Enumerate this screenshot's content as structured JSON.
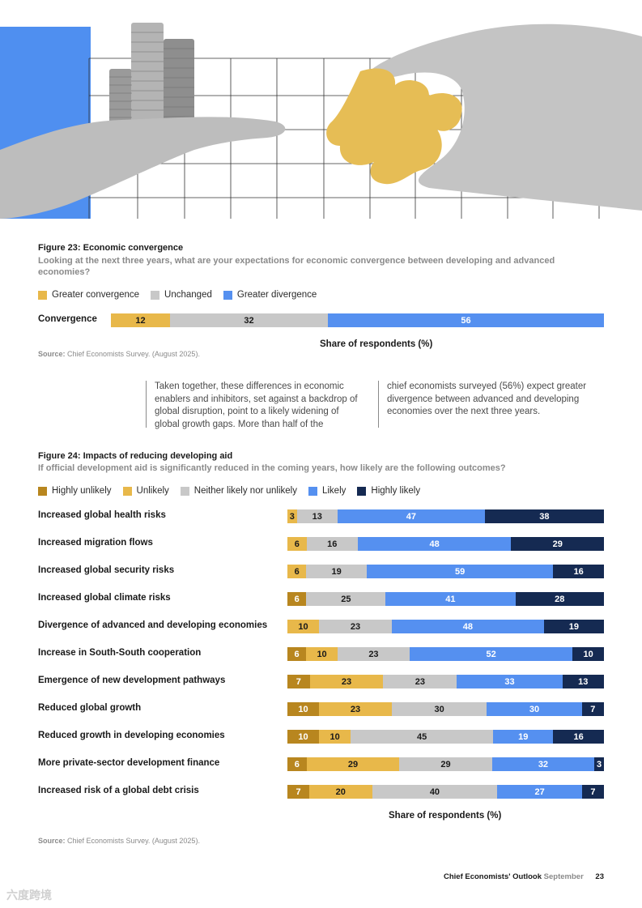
{
  "colors": {
    "highly_unlikely": "#b8861f",
    "unlikely": "#e8b84a",
    "neutral": "#c8c8c8",
    "likely": "#5590f0",
    "highly_likely": "#152a52"
  },
  "figure23": {
    "title": "Figure 23: Economic convergence",
    "subtitle": "Looking at the next three years, what are your expectations for economic convergence between developing and advanced economies?",
    "legend": [
      "Greater convergence",
      "Unchanged",
      "Greater divergence"
    ],
    "axis_title": "Share of respondents (%)",
    "source_label": "Source:",
    "source_text": "Chief Economists Survey. (August 2025)."
  },
  "quote": {
    "left": "Taken together, these differences in economic enablers and inhibitors, set against a backdrop of global disruption, point to a likely widening of global growth gaps. More than half of the",
    "right": "chief economists surveyed (56%) expect greater divergence between advanced and developing economies over the next three years."
  },
  "figure24": {
    "title": "Figure 24: Impacts of reducing developing aid",
    "subtitle": "If official development aid is significantly reduced in the coming years, how likely are the following outcomes?",
    "legend": [
      "Highly unlikely",
      "Unlikely",
      "Neither likely nor unlikely",
      "Likely",
      "Highly likely"
    ],
    "axis_title": "Share of respondents (%)",
    "source_label": "Source:",
    "source_text": "Chief Economists Survey. (August 2025)."
  },
  "chart_data": [
    {
      "type": "bar",
      "orientation": "horizontal",
      "stacked": true,
      "title": "Figure 23: Economic convergence",
      "xlabel": "Share of respondents (%)",
      "xlim": [
        0,
        100
      ],
      "categories": [
        "Convergence"
      ],
      "series": [
        {
          "name": "Greater convergence",
          "values": [
            12
          ]
        },
        {
          "name": "Unchanged",
          "values": [
            32
          ]
        },
        {
          "name": "Greater divergence",
          "values": [
            56
          ]
        }
      ]
    },
    {
      "type": "bar",
      "orientation": "horizontal",
      "stacked": true,
      "title": "Figure 24: Impacts of reducing developing aid",
      "xlabel": "Share of respondents (%)",
      "xlim": [
        0,
        100
      ],
      "categories": [
        "Increased global health risks",
        "Increased migration flows",
        "Increased global security risks",
        "Increased global climate risks",
        "Divergence of advanced and developing economies",
        "Increase in South-South cooperation",
        "Emergence of new development pathways",
        "Reduced global growth",
        "Reduced growth in developing economies",
        "More private-sector development finance",
        "Increased risk of a global debt crisis"
      ],
      "series": [
        {
          "name": "Highly unlikely",
          "values": [
            0,
            0,
            0,
            6,
            0,
            6,
            7,
            10,
            10,
            6,
            7
          ]
        },
        {
          "name": "Unlikely",
          "values": [
            3,
            6,
            6,
            0,
            10,
            10,
            23,
            23,
            10,
            29,
            20
          ]
        },
        {
          "name": "Neither likely nor unlikely",
          "values": [
            13,
            16,
            19,
            25,
            23,
            23,
            23,
            30,
            45,
            29,
            40
          ]
        },
        {
          "name": "Likely",
          "values": [
            47,
            48,
            59,
            41,
            48,
            52,
            33,
            30,
            19,
            32,
            27
          ]
        },
        {
          "name": "Highly likely",
          "values": [
            38,
            29,
            16,
            28,
            19,
            10,
            13,
            7,
            16,
            3,
            7
          ]
        }
      ]
    }
  ],
  "footer": {
    "report": "Chief Economists' Outlook",
    "month": "September",
    "page": "23"
  },
  "watermark": "六度跨境"
}
